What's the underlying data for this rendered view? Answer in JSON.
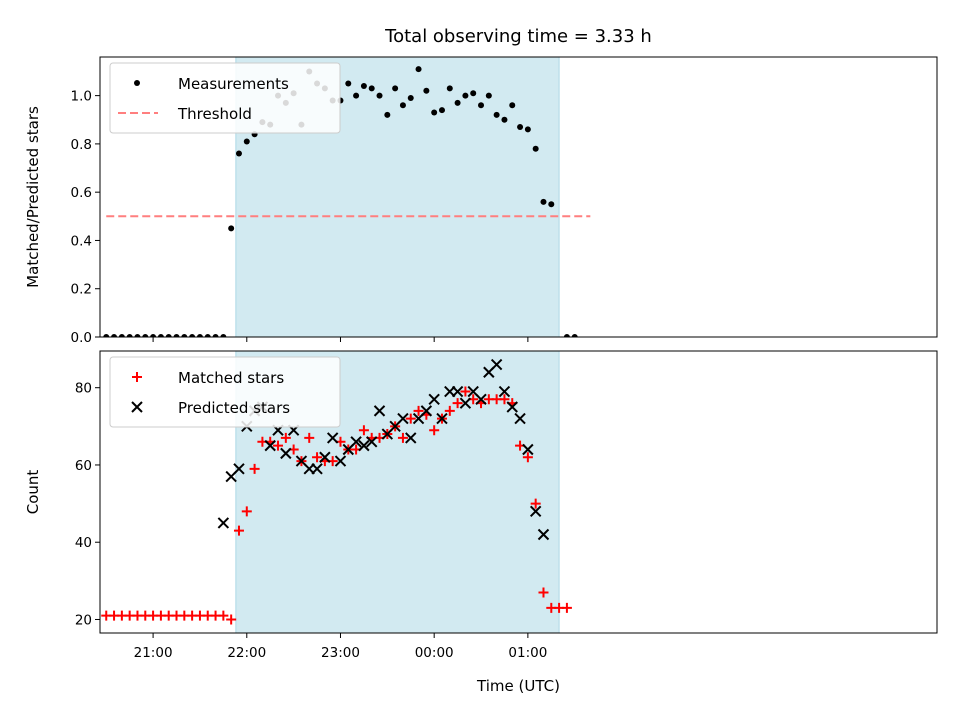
{
  "chart_data": [
    {
      "type": "scatter",
      "title": "Total observing time = 3.33 h",
      "ylabel": "Matched/Predicted stars",
      "xlabel": "",
      "ylim": [
        0,
        1.16
      ],
      "yticks": [
        0.0,
        0.2,
        0.4,
        0.6,
        0.8,
        1.0
      ],
      "ytick_labels": [
        "0.0",
        "0.2",
        "0.4",
        "0.6",
        "0.8",
        "1.0"
      ],
      "xlim_minutes": [
        1226,
        1762
      ],
      "legend_position": "upper-left",
      "observing_window": {
        "start": "21:53",
        "end": "01:20",
        "color": "#add8e6"
      },
      "series": [
        {
          "name": "Measurements",
          "marker": "dot",
          "color": "#000000",
          "x": [
            "20:30",
            "20:35",
            "20:40",
            "20:45",
            "20:50",
            "20:55",
            "21:00",
            "21:05",
            "21:10",
            "21:15",
            "21:20",
            "21:25",
            "21:30",
            "21:35",
            "21:40",
            "21:45",
            "21:50",
            "21:55",
            "22:00",
            "22:05",
            "22:10",
            "22:15",
            "22:20",
            "22:25",
            "22:30",
            "22:35",
            "22:40",
            "22:45",
            "22:50",
            "22:55",
            "23:00",
            "23:05",
            "23:10",
            "23:15",
            "23:20",
            "23:25",
            "23:30",
            "23:35",
            "23:40",
            "23:45",
            "23:50",
            "23:55",
            "00:00",
            "00:05",
            "00:10",
            "00:15",
            "00:20",
            "00:25",
            "00:30",
            "00:35",
            "00:40",
            "00:45",
            "00:50",
            "00:55",
            "01:00",
            "01:05",
            "01:10",
            "01:15",
            "01:20",
            "01:25",
            "01:30"
          ],
          "y": [
            0,
            0,
            0,
            0,
            0,
            0,
            0,
            0,
            0,
            0,
            0,
            0,
            0,
            0,
            0,
            0,
            0.45,
            0.76,
            0.81,
            0.84,
            0.89,
            0.88,
            1.0,
            0.97,
            1.01,
            0.88,
            1.1,
            1.05,
            1.03,
            0.98,
            0.98,
            1.05,
            1.0,
            1.04,
            1.03,
            1.0,
            0.92,
            1.03,
            0.96,
            0.99,
            1.11,
            1.02,
            0.93,
            0.94,
            1.03,
            0.97,
            1.0,
            1.01,
            0.96,
            1.0,
            0.92,
            0.9,
            0.96,
            0.87,
            0.86,
            0.78,
            0.56,
            0.55,
            null,
            0,
            0
          ]
        },
        {
          "name": "Threshold",
          "line_style": "dashed",
          "color": "#ff7f7f",
          "x": [
            "20:30",
            "01:40"
          ],
          "y": [
            0.5,
            0.5
          ]
        }
      ]
    },
    {
      "type": "scatter",
      "title": "",
      "ylabel": "Count",
      "xlabel": "Time (UTC)",
      "ylim": [
        16.5,
        89.5
      ],
      "yticks": [
        20,
        40,
        60,
        80
      ],
      "ytick_labels": [
        "20",
        "40",
        "60",
        "80"
      ],
      "xlim_minutes": [
        1226,
        1762
      ],
      "xticks": [
        "21:00",
        "22:00",
        "23:00",
        "00:00",
        "01:00"
      ],
      "xtick_minutes": [
        1260,
        1320,
        1380,
        1440,
        1500
      ],
      "legend_position": "upper-left",
      "observing_window": {
        "start": "21:53",
        "end": "01:20",
        "color": "#add8e6"
      },
      "series": [
        {
          "name": "Matched stars",
          "marker": "plus",
          "color": "#ff0000",
          "x": [
            "20:30",
            "20:35",
            "20:40",
            "20:45",
            "20:50",
            "20:55",
            "21:00",
            "21:05",
            "21:10",
            "21:15",
            "21:20",
            "21:25",
            "21:30",
            "21:35",
            "21:40",
            "21:45",
            "21:50",
            "21:55",
            "22:00",
            "22:05",
            "22:10",
            "22:15",
            "22:20",
            "22:25",
            "22:30",
            "22:35",
            "22:40",
            "22:45",
            "22:50",
            "22:55",
            "23:00",
            "23:05",
            "23:10",
            "23:15",
            "23:20",
            "23:25",
            "23:30",
            "23:35",
            "23:40",
            "23:45",
            "23:50",
            "23:55",
            "00:00",
            "00:05",
            "00:10",
            "00:15",
            "00:20",
            "00:25",
            "00:30",
            "00:35",
            "00:40",
            "00:45",
            "00:50",
            "00:55",
            "01:00",
            "01:05",
            "01:10",
            "01:15",
            "01:20",
            "01:25",
            "01:30"
          ],
          "y": [
            21,
            21,
            21,
            21,
            21,
            21,
            21,
            21,
            21,
            21,
            21,
            21,
            21,
            21,
            21,
            21,
            20,
            43,
            48,
            59,
            66,
            66,
            65,
            67,
            64,
            61,
            67,
            62,
            61,
            61,
            66,
            64,
            64,
            69,
            67,
            67,
            68,
            70,
            67,
            72,
            74,
            73,
            69,
            72,
            74,
            76,
            79,
            77,
            76,
            77,
            77,
            77,
            76,
            65,
            62,
            50,
            27,
            23,
            23,
            23,
            null
          ]
        },
        {
          "name": "Predicted stars",
          "marker": "x",
          "color": "#000000",
          "x": [
            "21:45",
            "21:50",
            "21:55",
            "22:00",
            "22:05",
            "22:10",
            "22:15",
            "22:20",
            "22:25",
            "22:30",
            "22:35",
            "22:40",
            "22:45",
            "22:50",
            "22:55",
            "23:00",
            "23:05",
            "23:10",
            "23:15",
            "23:20",
            "23:25",
            "23:30",
            "23:35",
            "23:40",
            "23:45",
            "23:50",
            "23:55",
            "00:00",
            "00:05",
            "00:10",
            "00:15",
            "00:20",
            "00:25",
            "00:30",
            "00:35",
            "00:40",
            "00:45",
            "00:50",
            "00:55",
            "01:00",
            "01:05",
            "01:10",
            "01:15"
          ],
          "y": [
            45,
            57,
            59,
            70,
            74,
            75,
            65,
            69,
            63,
            69,
            61,
            59,
            59,
            62,
            67,
            61,
            64,
            66,
            65,
            66,
            74,
            68,
            70,
            72,
            67,
            72,
            74,
            77,
            72,
            79,
            79,
            76,
            79,
            77,
            84,
            86,
            79,
            75,
            72,
            64,
            48,
            42,
            null
          ]
        }
      ]
    }
  ]
}
